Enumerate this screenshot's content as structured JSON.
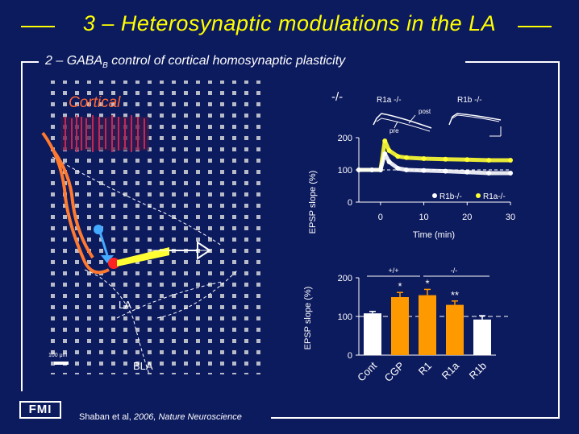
{
  "header": {
    "title": "3 – Heterosynaptic modulations in the LA",
    "subtitle_prefix": "2 – GABA",
    "subtitle_sub": "B",
    "subtitle_suffix": " control of cortical homosynaptic plasticity"
  },
  "diagram": {
    "cortical_label": "Cortical",
    "la_label": "LA",
    "bla_label": "BLA",
    "scale_label": "100 μm"
  },
  "top_chart": {
    "genotype_label": "-/-",
    "inset_left_label": "R1a -/-",
    "inset_right_label": "R1b -/-",
    "inset_post": "post",
    "inset_pre": "pre",
    "legend": [
      "R1b-/-",
      "R1a-/-"
    ],
    "series_colors": [
      "#ffffff",
      "#ffff33"
    ]
  },
  "bottom_chart": {
    "group_left": "+/+",
    "group_right": "-/-"
  },
  "chart_data": [
    {
      "type": "scatter",
      "xlabel": "Time (min)",
      "ylabel": "EPSP slope (%)",
      "xlim": [
        -5,
        30
      ],
      "ylim": [
        0,
        200
      ],
      "x_ticks": [
        0,
        10,
        20,
        30
      ],
      "y_ticks": [
        0,
        100,
        200
      ],
      "series": [
        {
          "name": "R1b-/-",
          "color": "#ffffff",
          "x": [
            -5,
            -2,
            0,
            1,
            2,
            4,
            6,
            10,
            15,
            20,
            25,
            30
          ],
          "y": [
            100,
            100,
            100,
            150,
            125,
            105,
            100,
            98,
            96,
            93,
            90,
            90
          ]
        },
        {
          "name": "R1a-/-",
          "color": "#ffff33",
          "x": [
            -5,
            -2,
            0,
            1,
            2,
            4,
            6,
            10,
            15,
            20,
            25,
            30
          ],
          "y": [
            100,
            100,
            100,
            190,
            160,
            142,
            138,
            135,
            133,
            132,
            130,
            130
          ]
        }
      ]
    },
    {
      "type": "bar",
      "ylabel": "EPSP slope (%)",
      "ylim": [
        0,
        200
      ],
      "y_ticks": [
        0,
        100,
        200
      ],
      "categories": [
        "Cont",
        "CGP",
        "R1",
        "R1a",
        "R1b"
      ],
      "values": [
        108,
        150,
        155,
        130,
        92
      ],
      "errors": [
        5,
        12,
        15,
        10,
        10
      ],
      "colors": [
        "#ffffff",
        "#ff9900",
        "#ff9900",
        "#ff9900",
        "#ffffff"
      ],
      "significance": [
        "",
        "*",
        "*",
        "**",
        ""
      ],
      "reference_line": 100
    }
  ],
  "footer": {
    "logo": "FMI",
    "citation_prefix": "Shaban et al, ",
    "citation_year": "2006, ",
    "citation_journal": "Nature Neuroscience"
  }
}
